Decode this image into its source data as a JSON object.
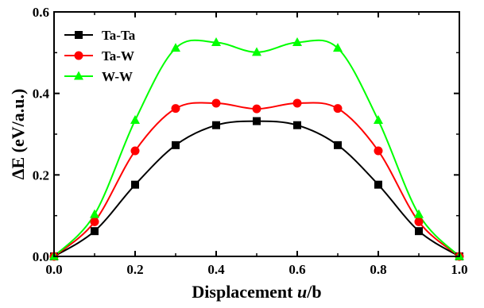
{
  "chart_data": {
    "type": "line",
    "x": [
      0.0,
      0.1,
      0.2,
      0.3,
      0.4,
      0.5,
      0.6,
      0.7,
      0.8,
      0.9,
      1.0
    ],
    "series": [
      {
        "name": "Ta-Ta",
        "color": "#000000",
        "marker": "square",
        "values": [
          0.0,
          0.062,
          0.176,
          0.273,
          0.322,
          0.332,
          0.322,
          0.273,
          0.176,
          0.062,
          0.0
        ]
      },
      {
        "name": "Ta-W",
        "color": "#ff0000",
        "marker": "circle",
        "values": [
          0.0,
          0.085,
          0.259,
          0.363,
          0.376,
          0.362,
          0.376,
          0.363,
          0.259,
          0.085,
          0.0
        ]
      },
      {
        "name": "W-W",
        "color": "#00ff00",
        "marker": "triangle",
        "values": [
          0.0,
          0.103,
          0.334,
          0.511,
          0.525,
          0.501,
          0.525,
          0.511,
          0.334,
          0.103,
          0.0
        ]
      }
    ],
    "xlim": [
      0.0,
      1.0
    ],
    "ylim": [
      0.0,
      0.6
    ],
    "xticks": [
      "0.0",
      "0.2",
      "0.4",
      "0.6",
      "0.8",
      "1.0"
    ],
    "yticks": [
      "0.0",
      "0.2",
      "0.4",
      "0.6"
    ],
    "xlabel_prefix": "Displacement ",
    "xlabel_italic": "u",
    "xlabel_suffix": "/b",
    "ylabel": "ΔE (eV/a.u.)",
    "legend_position": "top-left",
    "grid": false
  }
}
